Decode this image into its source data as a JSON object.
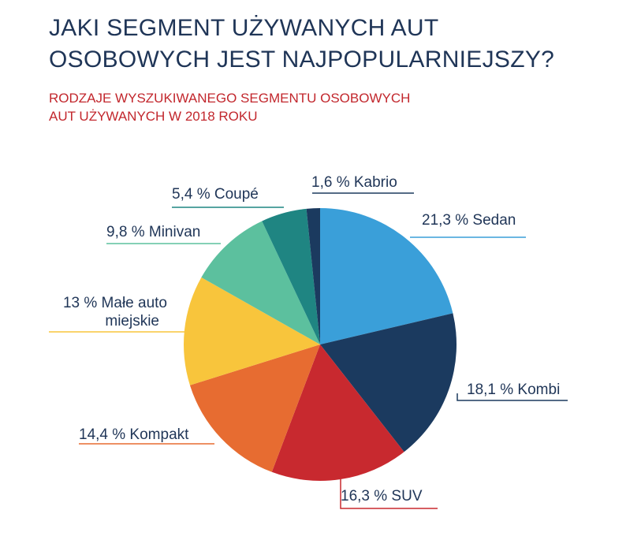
{
  "title": {
    "line1": "JAKI SEGMENT UŻYWANYCH AUT",
    "line2": "OSOBOWYCH JEST NAJPOPULARNIEJSZY?"
  },
  "subtitle": {
    "line1": "RODZAJE WYSZUKIWANEGO SEGMENTU OSOBOWYCH",
    "line2": "AUT UŻYWANYCH W 2018 ROKU"
  },
  "chart_data": {
    "type": "pie",
    "start": "12 o'clock",
    "direction": "clockwise",
    "slices": [
      {
        "label": "21,3 % Sedan",
        "value": 21.3,
        "color": "#3a9fd9"
      },
      {
        "label": "18,1 % Kombi",
        "value": 18.1,
        "color": "#1b3a5f"
      },
      {
        "label": "16,3 % SUV",
        "value": 16.3,
        "color": "#c8292f"
      },
      {
        "label": "14,4 % Kompakt",
        "value": 14.4,
        "color": "#e76c31"
      },
      {
        "label": "13 % Małe auto miejskie",
        "lines": [
          "13 % Małe auto",
          "miejskie"
        ],
        "value": 13.0,
        "color": "#f8c53c"
      },
      {
        "label": "9,8 % Minivan",
        "value": 9.8,
        "color": "#5cc09e"
      },
      {
        "label": "5,4 % Coupé",
        "value": 5.4,
        "color": "#1f8582"
      },
      {
        "label": "1,6 % Kabrio",
        "value": 1.6,
        "color": "#1b3a5f"
      }
    ]
  }
}
